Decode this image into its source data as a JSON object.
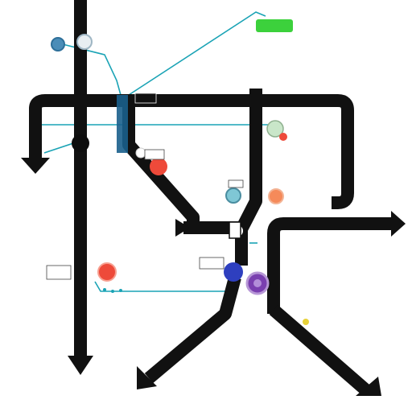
{
  "colors": {
    "track": "#111111",
    "teal": "#1aa3b5",
    "green": "#3cd13c",
    "red": "#ee4a3a",
    "orange": "#f58a5a",
    "blue": "#2e3fbf",
    "purple": "#7a3fb0",
    "yellow": "#e8d23a"
  },
  "labels": {
    "legend_line1": "",
    "legend_line2": "",
    "top_bar_a": "",
    "top_bar_b": "",
    "tag_red": "",
    "tag_green": "",
    "tag_orange": "",
    "tag_left": "",
    "tag_center": "",
    "tag_purple": "",
    "tag_yellow": ""
  }
}
